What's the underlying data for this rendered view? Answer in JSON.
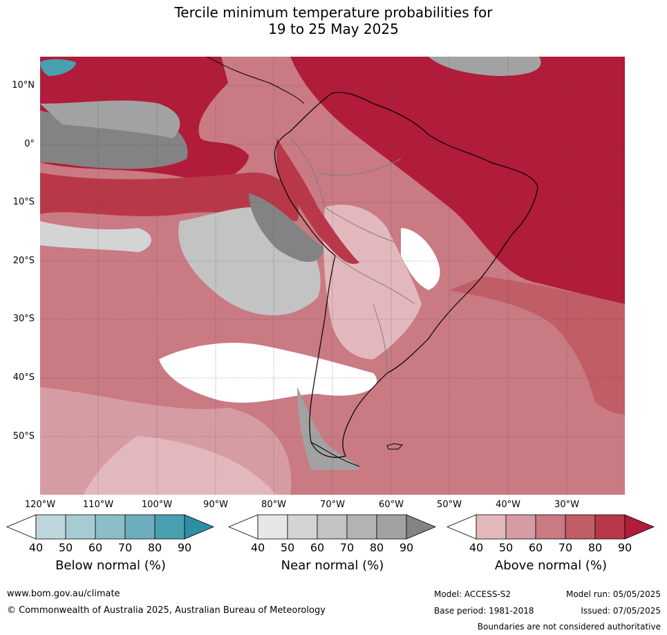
{
  "title_line1": "Tercile minimum temperature probabilities for",
  "title_line2": "19 to 25 May 2025",
  "lat_labels": [
    "10°N",
    "0°",
    "10°S",
    "20°S",
    "30°S",
    "40°S",
    "50°S"
  ],
  "lon_labels": [
    "120°W",
    "110°W",
    "100°W",
    "90°W",
    "80°W",
    "70°W",
    "60°W",
    "50°W",
    "40°W",
    "30°W"
  ],
  "colorbars": [
    {
      "title": "Below normal (%)",
      "ticks": [
        "40",
        "50",
        "60",
        "70",
        "80",
        "90"
      ],
      "colors": [
        "#ffffff",
        "#bed6dc",
        "#a7cbd2",
        "#8cbdc8",
        "#6eadbd",
        "#48a0b1",
        "#2e8ea3"
      ]
    },
    {
      "title": "Near normal (%)",
      "ticks": [
        "40",
        "50",
        "60",
        "70",
        "80",
        "90"
      ],
      "colors": [
        "#ffffff",
        "#e6e6e6",
        "#d4d4d4",
        "#c3c3c3",
        "#b3b3b3",
        "#a2a2a2",
        "#838383"
      ]
    },
    {
      "title": "Above normal (%)",
      "ticks": [
        "40",
        "50",
        "60",
        "70",
        "80",
        "90"
      ],
      "colors": [
        "#ffffff",
        "#e3b8bd",
        "#d69ca3",
        "#c97a83",
        "#c05d67",
        "#b8384a",
        "#b01c39"
      ]
    }
  ],
  "footer": {
    "url": "www.bom.gov.au/climate",
    "copyright": "© Commonwealth of Australia 2025, Australian Bureau of Meteorology",
    "model": "Model: ACCESS-S2",
    "model_run": "Model run: 05/05/2025",
    "base_period": "Base period: 1981-2018",
    "issued": "Issued: 07/05/2025",
    "disclaimer": "Boundaries are not considered authoritative"
  }
}
